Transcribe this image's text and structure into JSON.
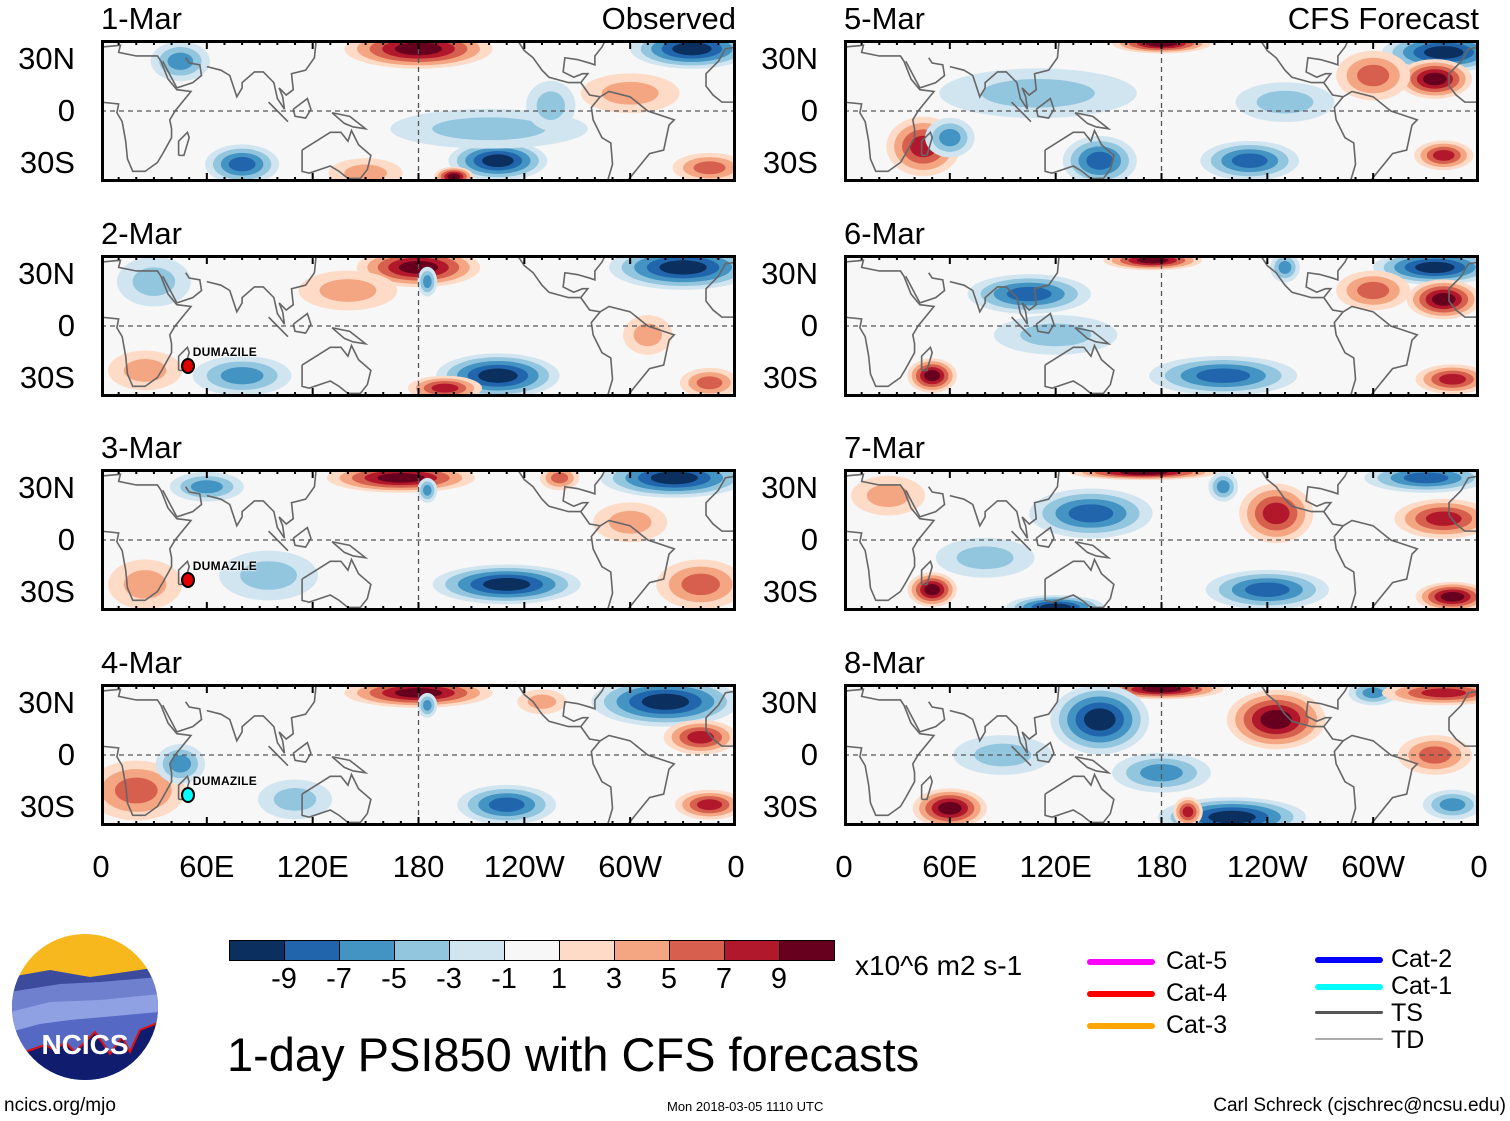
{
  "panels": [
    {
      "date": "1-Mar",
      "label": "Observed"
    },
    {
      "date": "2-Mar",
      "storm": "DUMAZILE"
    },
    {
      "date": "3-Mar",
      "storm": "DUMAZILE"
    },
    {
      "date": "4-Mar",
      "storm": "DUMAZILE"
    },
    {
      "date": "5-Mar",
      "label": "CFS Forecast"
    },
    {
      "date": "6-Mar"
    },
    {
      "date": "7-Mar"
    },
    {
      "date": "8-Mar"
    }
  ],
  "y_ticks": [
    "30N",
    "0",
    "30S"
  ],
  "x_ticks": [
    "0",
    "60E",
    "120E",
    "180",
    "120W",
    "60W",
    "0"
  ],
  "chart_data": {
    "type": "heatmap",
    "title": "1-day PSI850 with CFS forecasts",
    "variable": "850-hPa streamfunction anomaly",
    "units": "x10^6 m2 s-1",
    "colorbar_levels": [
      "-9",
      "-7",
      "-5",
      "-3",
      "-1",
      "1",
      "3",
      "5",
      "7",
      "9"
    ],
    "colorbar_colors": [
      "#0b305f",
      "#2166ac",
      "#4393c3",
      "#92c5de",
      "#d1e5f0",
      "#f7f7f7",
      "#fddbc7",
      "#f4a582",
      "#d6604d",
      "#b2182b",
      "#67001f"
    ],
    "lat_range": [
      "40S",
      "40N"
    ],
    "lon_range": [
      "0",
      "360"
    ]
  },
  "legend": {
    "items": [
      {
        "label": "Cat-5",
        "color": "#ff00ff"
      },
      {
        "label": "Cat-4",
        "color": "#ff0000"
      },
      {
        "label": "Cat-3",
        "color": "#ffa500"
      },
      {
        "label": "Cat-2",
        "color": "#0000ff"
      },
      {
        "label": "Cat-1",
        "color": "#00ffff"
      },
      {
        "label": "TS",
        "color": "#555555"
      },
      {
        "label": "TD",
        "color": "#aaaaaa"
      }
    ]
  },
  "logo": {
    "text": "NCICS"
  },
  "footer": {
    "left": "ncics.org/mjo",
    "center": "Mon 2018-03-05 1110 UTC",
    "right": "Carl Schreck (cjschrec@ncsu.edu)"
  }
}
